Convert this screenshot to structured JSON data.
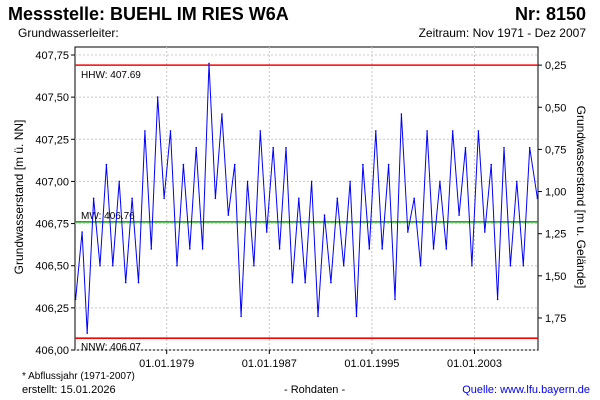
{
  "header": {
    "title": "Messstelle: BUEHL IM RIES W6A",
    "number": "Nr: 8150",
    "aquifer_label": "Grundwasserleiter:",
    "period": "Zeitraum: Nov 1971 - Dez 2007"
  },
  "footer": {
    "footnote": "* Abflussjahr (1971-2007)",
    "created": "erstellt:  15.01.2026",
    "raw_data": "- Rohdaten -",
    "source": "Quelle: www.lfu.bayern.de"
  },
  "chart_data": {
    "type": "line",
    "title": "Messstelle: BUEHL IM RIES W6A",
    "ylabel": "Grundwasserstand [m ü. NN]",
    "ylabel_right": "Grundwasserstand [m u. Gelände]",
    "ylim": [
      406.0,
      407.75
    ],
    "xlim": [
      1971.85,
      2007.95
    ],
    "yticks": [
      "407,75",
      "407,50",
      "407,25",
      "407,00",
      "406,75",
      "406,50",
      "406,25",
      "406,00"
    ],
    "ytick_values": [
      407.75,
      407.5,
      407.25,
      407.0,
      406.75,
      406.5,
      406.25,
      406.0
    ],
    "yticks_right": [
      "0,25",
      "0,50",
      "0,75",
      "1,00",
      "1,25",
      "1,50",
      "1,75"
    ],
    "yticks_right_values": [
      0.25,
      0.5,
      0.75,
      1.0,
      1.25,
      1.5,
      1.75
    ],
    "right_axis_reference": 407.94,
    "xticks": [
      "01.01.1979",
      "01.01.1987",
      "01.01.1995",
      "01.01.2003"
    ],
    "xtick_values": [
      1979.0,
      1987.0,
      1995.0,
      2003.0
    ],
    "grid": true,
    "reference_lines": [
      {
        "label": "HHW: 407.69",
        "value": 407.69,
        "color": "#ff0000"
      },
      {
        "label": "MW: 406.76",
        "value": 406.76,
        "color": "#00a000"
      },
      {
        "label": "NNW: 406.07",
        "value": 406.07,
        "color": "#ff0000"
      }
    ],
    "series": [
      {
        "color": "#0000ff",
        "x": [
          1971.9,
          1972.4,
          1972.8,
          1973.3,
          1973.8,
          1974.3,
          1974.8,
          1975.3,
          1975.8,
          1976.3,
          1976.8,
          1977.3,
          1977.8,
          1978.3,
          1978.8,
          1979.3,
          1979.8,
          1980.3,
          1980.8,
          1981.3,
          1981.8,
          1982.3,
          1982.8,
          1983.3,
          1983.8,
          1984.3,
          1984.8,
          1985.3,
          1985.8,
          1986.3,
          1986.8,
          1987.3,
          1987.8,
          1988.3,
          1988.8,
          1989.3,
          1989.8,
          1990.3,
          1990.8,
          1991.3,
          1991.8,
          1992.3,
          1992.8,
          1993.3,
          1993.8,
          1994.3,
          1994.8,
          1995.3,
          1995.8,
          1996.3,
          1996.8,
          1997.3,
          1997.8,
          1998.3,
          1998.8,
          1999.3,
          1999.8,
          2000.3,
          2000.8,
          2001.3,
          2001.8,
          2002.3,
          2002.8,
          2003.3,
          2003.8,
          2004.3,
          2004.8,
          2005.3,
          2005.8,
          2006.3,
          2006.8,
          2007.3,
          2007.9
        ],
        "values": [
          406.3,
          406.7,
          406.1,
          406.9,
          406.5,
          407.1,
          406.5,
          407.0,
          406.4,
          406.9,
          406.4,
          407.3,
          406.6,
          407.5,
          406.9,
          407.3,
          406.5,
          407.1,
          406.6,
          407.2,
          406.6,
          407.7,
          406.9,
          407.4,
          406.8,
          407.1,
          406.2,
          407.0,
          406.5,
          407.3,
          406.7,
          407.2,
          406.6,
          407.2,
          406.4,
          406.9,
          406.4,
          407.0,
          406.2,
          406.8,
          406.4,
          406.9,
          406.5,
          407.0,
          406.2,
          407.1,
          406.6,
          407.3,
          406.6,
          407.1,
          406.3,
          407.4,
          406.7,
          406.9,
          406.5,
          407.3,
          406.6,
          407.0,
          406.6,
          407.3,
          406.8,
          407.2,
          406.5,
          407.3,
          406.7,
          407.1,
          406.3,
          407.2,
          406.5,
          407.0,
          406.5,
          407.2,
          406.9
        ]
      }
    ]
  }
}
